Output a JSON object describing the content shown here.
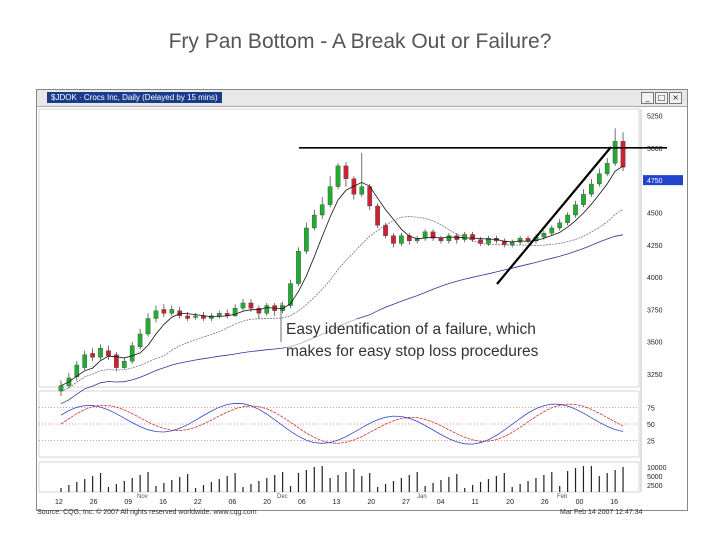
{
  "slide": {
    "title": "Fry Pan Bottom - A Break Out or Failure?",
    "annotation_line1": "Easy identification of a failure, which",
    "annotation_line2": "makes for easy stop loss procedures"
  },
  "window": {
    "caption": "$JDOK · Crocs Inc, Daily (Delayed by 15 mins)",
    "buttons": [
      "_",
      "□",
      "×"
    ]
  },
  "footer": {
    "left": "Source: CQG, Inc. © 2007 All rights reserved worldwide. www.cqg.com",
    "right": "Mar Feb 14 2007 12:47:34"
  },
  "colors": {
    "up_candle": "#22aa33",
    "down_candle": "#cc2233",
    "ma_fast": "#111111",
    "ma_slow": "#333399",
    "oscillator_a": "#cc3333",
    "oscillator_b": "#3344cc",
    "resistance_line": "#000000",
    "price_highlight": "#2244cc",
    "window_caption_bg": "#1a3c8c"
  },
  "chart_data": {
    "type": "candlestick",
    "price_axis_labels": [
      "5250",
      "5000",
      "4750",
      "4500",
      "4250",
      "4000",
      "3750",
      "3500",
      "3250"
    ],
    "x_tick_labels": [
      "12",
      "26",
      "09",
      "16",
      "22",
      "06",
      "20",
      "06",
      "13",
      "20",
      "27",
      "04",
      "11",
      "20",
      "26",
      "00",
      "16"
    ],
    "time_markers": [
      "Nov",
      "Dec",
      "Jan",
      "Feb"
    ],
    "price_highlight_label": "4750",
    "oscillator_labels": [
      "75",
      "50",
      "25"
    ],
    "volume_labels": [
      "10000",
      "5000",
      "2500"
    ],
    "panels": [
      "price",
      "oscillator",
      "volume"
    ],
    "candles": [
      {
        "o": 3120,
        "c": 3160,
        "h": 3200,
        "l": 3080
      },
      {
        "o": 3160,
        "c": 3220,
        "h": 3260,
        "l": 3140
      },
      {
        "o": 3230,
        "c": 3320,
        "h": 3350,
        "l": 3200
      },
      {
        "o": 3300,
        "c": 3400,
        "h": 3430,
        "l": 3280
      },
      {
        "o": 3410,
        "c": 3380,
        "h": 3450,
        "l": 3350
      },
      {
        "o": 3380,
        "c": 3450,
        "h": 3480,
        "l": 3360
      },
      {
        "o": 3430,
        "c": 3390,
        "h": 3470,
        "l": 3360
      },
      {
        "o": 3400,
        "c": 3300,
        "h": 3420,
        "l": 3270
      },
      {
        "o": 3300,
        "c": 3350,
        "h": 3380,
        "l": 3290
      },
      {
        "o": 3350,
        "c": 3470,
        "h": 3500,
        "l": 3330
      },
      {
        "o": 3460,
        "c": 3560,
        "h": 3600,
        "l": 3440
      },
      {
        "o": 3560,
        "c": 3680,
        "h": 3720,
        "l": 3540
      },
      {
        "o": 3680,
        "c": 3740,
        "h": 3780,
        "l": 3650
      },
      {
        "o": 3750,
        "c": 3720,
        "h": 3790,
        "l": 3690
      },
      {
        "o": 3720,
        "c": 3750,
        "h": 3780,
        "l": 3700
      },
      {
        "o": 3740,
        "c": 3700,
        "h": 3770,
        "l": 3680
      },
      {
        "o": 3700,
        "c": 3680,
        "h": 3730,
        "l": 3660
      },
      {
        "o": 3690,
        "c": 3700,
        "h": 3720,
        "l": 3670
      },
      {
        "o": 3700,
        "c": 3680,
        "h": 3730,
        "l": 3660
      },
      {
        "o": 3680,
        "c": 3700,
        "h": 3720,
        "l": 3660
      },
      {
        "o": 3700,
        "c": 3720,
        "h": 3740,
        "l": 3680
      },
      {
        "o": 3720,
        "c": 3700,
        "h": 3750,
        "l": 3680
      },
      {
        "o": 3700,
        "c": 3760,
        "h": 3790,
        "l": 3690
      },
      {
        "o": 3760,
        "c": 3800,
        "h": 3830,
        "l": 3740
      },
      {
        "o": 3800,
        "c": 3760,
        "h": 3830,
        "l": 3730
      },
      {
        "o": 3760,
        "c": 3720,
        "h": 3780,
        "l": 3680
      },
      {
        "o": 3720,
        "c": 3780,
        "h": 3800,
        "l": 3700
      },
      {
        "o": 3780,
        "c": 3740,
        "h": 3800,
        "l": 3700
      },
      {
        "o": 3740,
        "c": 3780,
        "h": 3810,
        "l": 3720
      },
      {
        "o": 3780,
        "c": 3950,
        "h": 3980,
        "l": 3760
      },
      {
        "o": 3950,
        "c": 4200,
        "h": 4230,
        "l": 3930
      },
      {
        "o": 4200,
        "c": 4380,
        "h": 4420,
        "l": 4180
      },
      {
        "o": 4380,
        "c": 4480,
        "h": 4520,
        "l": 4360
      },
      {
        "o": 4480,
        "c": 4560,
        "h": 4620,
        "l": 4450
      },
      {
        "o": 4560,
        "c": 4700,
        "h": 4780,
        "l": 4540
      },
      {
        "o": 4700,
        "c": 4860,
        "h": 4880,
        "l": 4680
      },
      {
        "o": 4860,
        "c": 4760,
        "h": 4890,
        "l": 4700
      },
      {
        "o": 4760,
        "c": 4640,
        "h": 4780,
        "l": 4600
      },
      {
        "o": 4640,
        "c": 4700,
        "h": 4960,
        "l": 4620
      },
      {
        "o": 4700,
        "c": 4550,
        "h": 4720,
        "l": 4520
      },
      {
        "o": 4550,
        "c": 4400,
        "h": 4570,
        "l": 4380
      },
      {
        "o": 4400,
        "c": 4320,
        "h": 4420,
        "l": 4300
      },
      {
        "o": 4320,
        "c": 4260,
        "h": 4340,
        "l": 4230
      },
      {
        "o": 4260,
        "c": 4320,
        "h": 4340,
        "l": 4240
      },
      {
        "o": 4320,
        "c": 4280,
        "h": 4340,
        "l": 4250
      },
      {
        "o": 4280,
        "c": 4300,
        "h": 4320,
        "l": 4260
      },
      {
        "o": 4300,
        "c": 4350,
        "h": 4370,
        "l": 4280
      },
      {
        "o": 4350,
        "c": 4300,
        "h": 4370,
        "l": 4280
      },
      {
        "o": 4300,
        "c": 4280,
        "h": 4320,
        "l": 4260
      },
      {
        "o": 4280,
        "c": 4320,
        "h": 4340,
        "l": 4260
      },
      {
        "o": 4320,
        "c": 4290,
        "h": 4340,
        "l": 4260
      },
      {
        "o": 4290,
        "c": 4330,
        "h": 4350,
        "l": 4270
      },
      {
        "o": 4330,
        "c": 4290,
        "h": 4350,
        "l": 4270
      },
      {
        "o": 4290,
        "c": 4260,
        "h": 4310,
        "l": 4240
      },
      {
        "o": 4260,
        "c": 4300,
        "h": 4320,
        "l": 4240
      },
      {
        "o": 4300,
        "c": 4280,
        "h": 4320,
        "l": 4260
      },
      {
        "o": 4280,
        "c": 4250,
        "h": 4300,
        "l": 4230
      },
      {
        "o": 4250,
        "c": 4270,
        "h": 4290,
        "l": 4230
      },
      {
        "o": 4270,
        "c": 4300,
        "h": 4320,
        "l": 4250
      },
      {
        "o": 4300,
        "c": 4280,
        "h": 4320,
        "l": 4260
      },
      {
        "o": 4280,
        "c": 4310,
        "h": 4330,
        "l": 4260
      },
      {
        "o": 4310,
        "c": 4340,
        "h": 4360,
        "l": 4290
      },
      {
        "o": 4340,
        "c": 4380,
        "h": 4400,
        "l": 4320
      },
      {
        "o": 4380,
        "c": 4420,
        "h": 4450,
        "l": 4360
      },
      {
        "o": 4420,
        "c": 4480,
        "h": 4500,
        "l": 4400
      },
      {
        "o": 4480,
        "c": 4560,
        "h": 4590,
        "l": 4460
      },
      {
        "o": 4560,
        "c": 4640,
        "h": 4680,
        "l": 4540
      },
      {
        "o": 4640,
        "c": 4720,
        "h": 4760,
        "l": 4620
      },
      {
        "o": 4720,
        "c": 4800,
        "h": 4840,
        "l": 4700
      },
      {
        "o": 4800,
        "c": 4880,
        "h": 4920,
        "l": 4780
      },
      {
        "o": 4880,
        "c": 5050,
        "h": 5150,
        "l": 4860
      },
      {
        "o": 5050,
        "c": 4850,
        "h": 5120,
        "l": 4820
      }
    ],
    "resistance_level": 5000
  }
}
